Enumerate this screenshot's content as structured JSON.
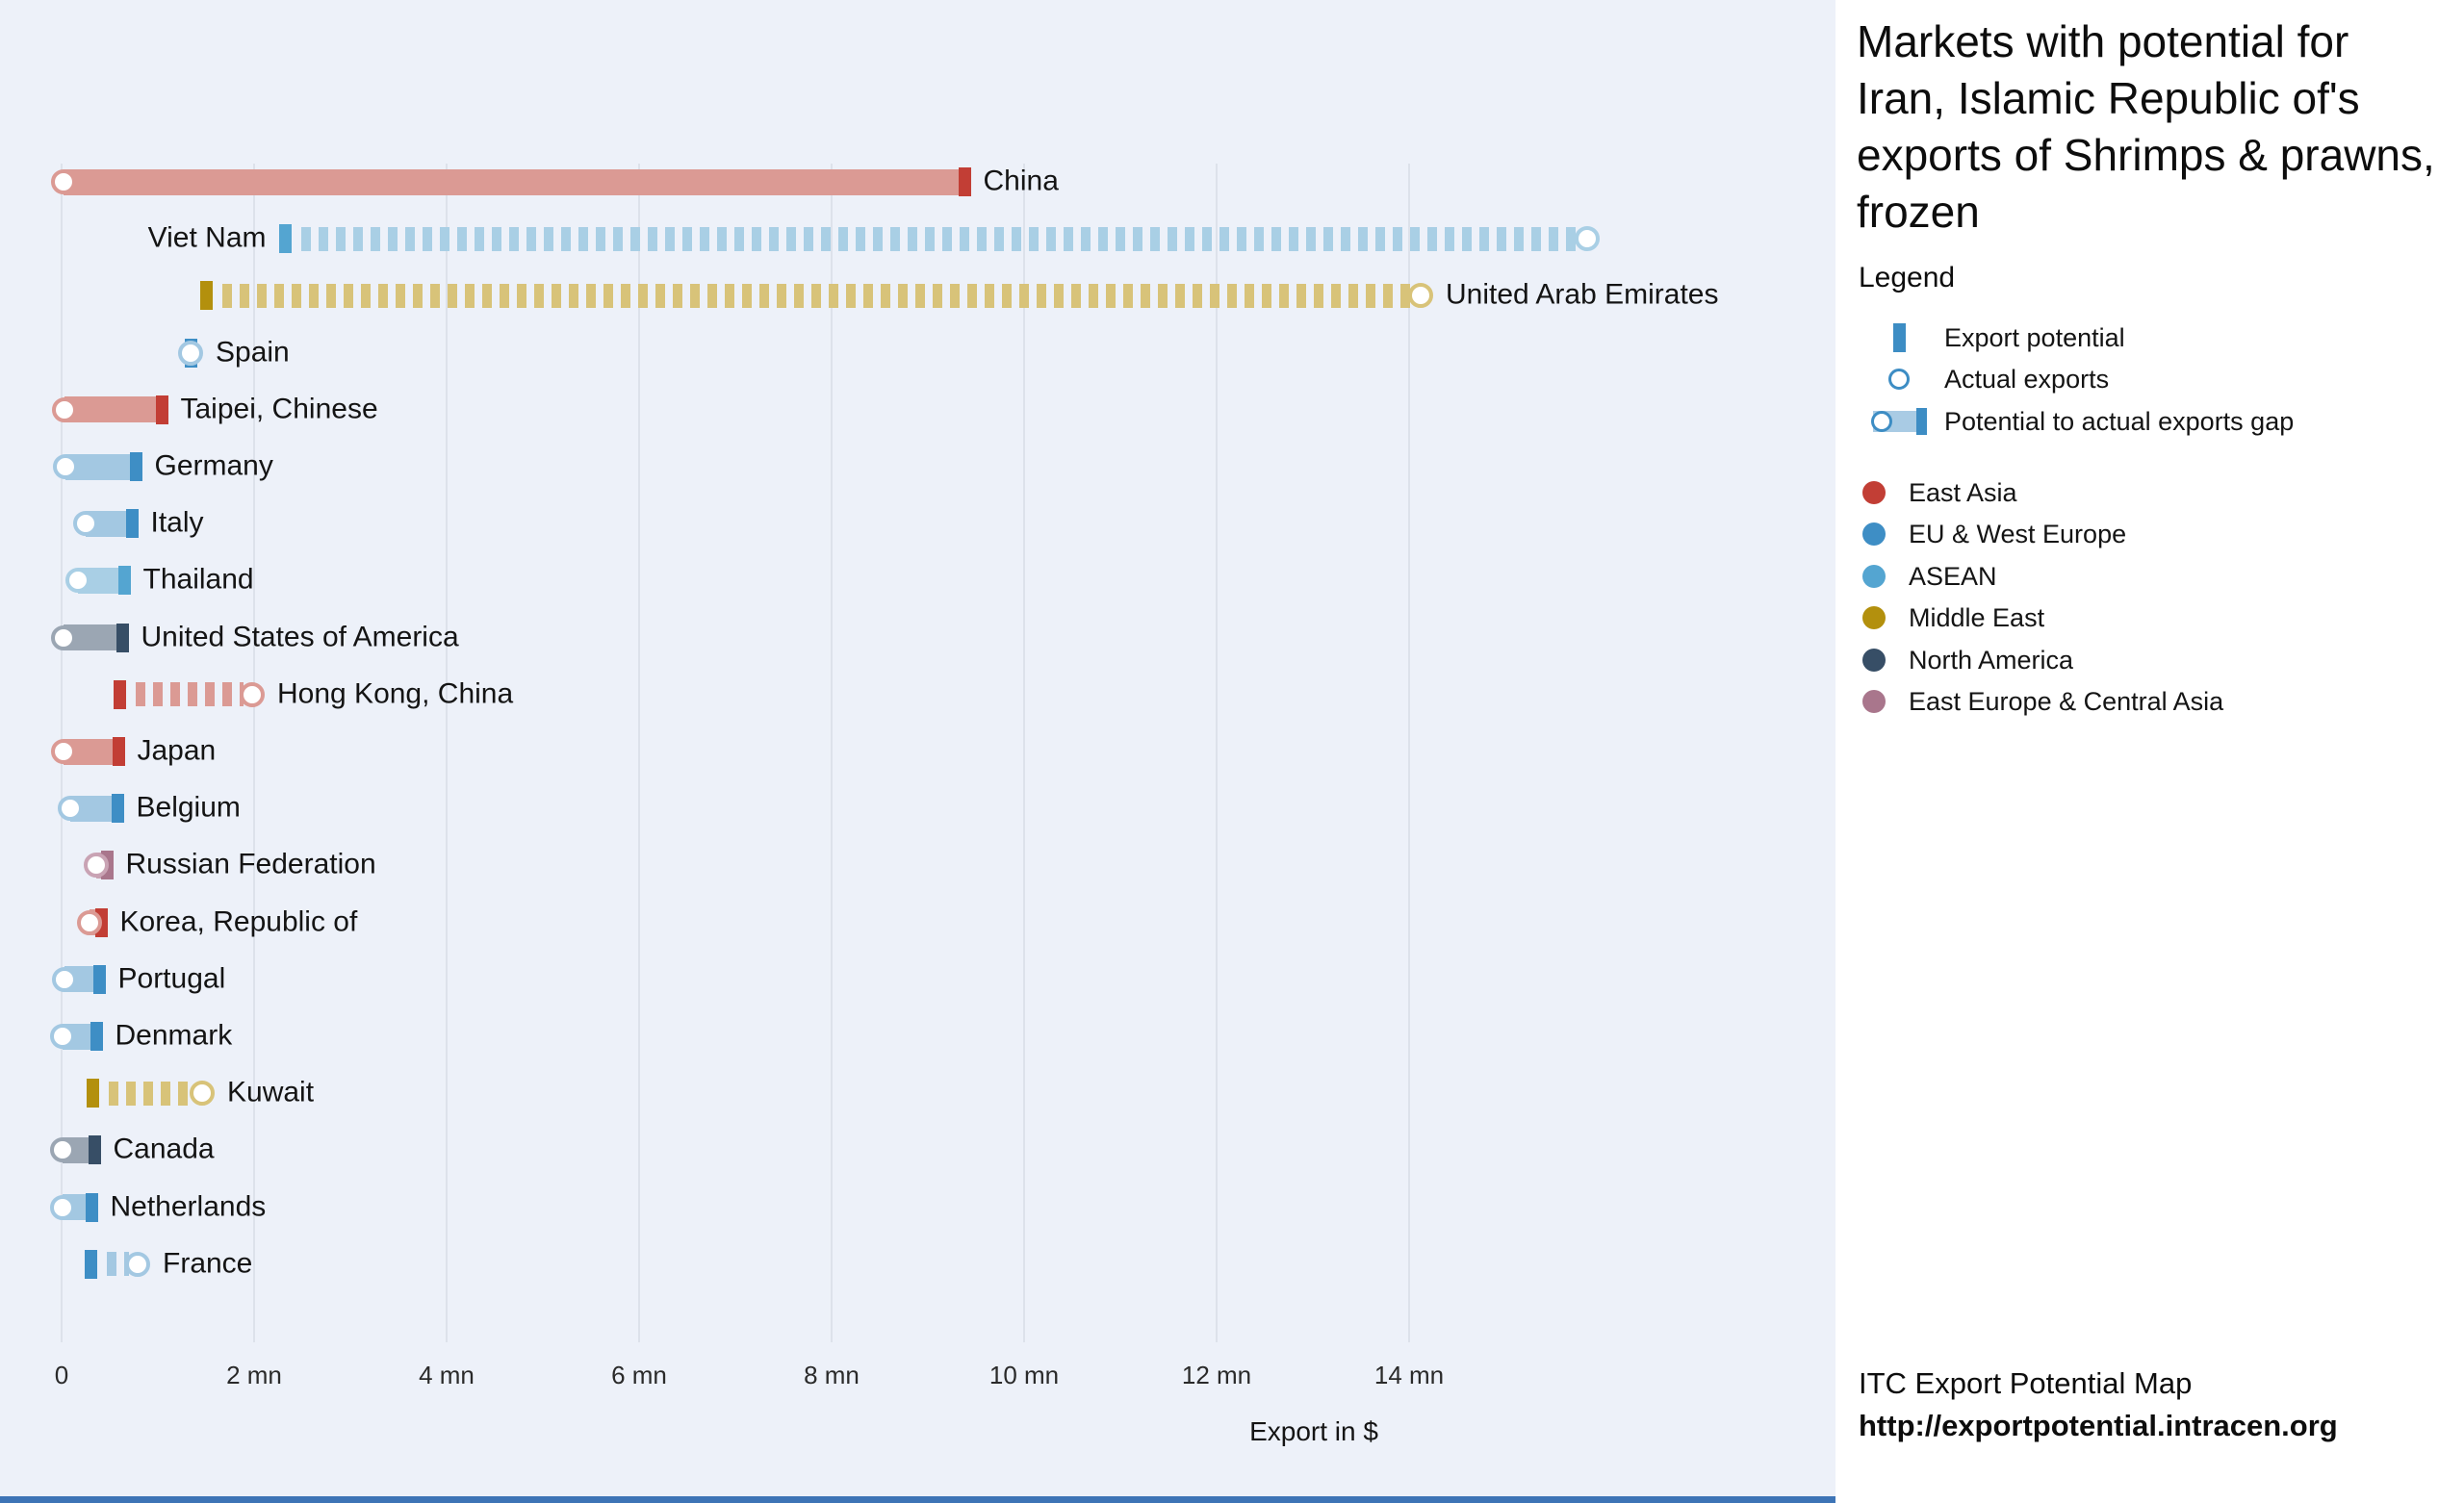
{
  "panel": {
    "title": "Markets with potential for Iran, Islamic Republic of's exports of Shrimps & prawns, frozen",
    "legend_title": "Legend",
    "legend_items": [
      {
        "id": "export-potential",
        "label": "Export potential"
      },
      {
        "id": "actual-exports",
        "label": "Actual exports"
      },
      {
        "id": "potential-gap",
        "label": "Potential to actual exports gap"
      }
    ],
    "legend_accent_solid": "#3d8dc4",
    "legend_accent_light": "#a9cbe4",
    "footer_line1": "ITC Export Potential Map",
    "footer_line2": "http://exportpotential.intracen.org"
  },
  "colors": {
    "chart_bg": "#edf1f9",
    "panel_bg": "#ffffff",
    "gridline": "#dde2eb",
    "bottom_strip": "#3d74b6",
    "text": "#141414"
  },
  "chart_data": {
    "type": "bar",
    "orientation": "horizontal",
    "title": "Markets with potential for Iran, Islamic Republic of's exports of Shrimps & prawns, frozen",
    "xlabel": "Export in $",
    "x_unit": "mn USD",
    "xlim": [
      0,
      16.3
    ],
    "grid": "vertical",
    "x_ticks": [
      {
        "value": 0,
        "label": "0"
      },
      {
        "value": 2,
        "label": "2 mn"
      },
      {
        "value": 4,
        "label": "4 mn"
      },
      {
        "value": 6,
        "label": "6 mn"
      },
      {
        "value": 8,
        "label": "8 mn"
      },
      {
        "value": 10,
        "label": "10 mn"
      },
      {
        "value": 12,
        "label": "12 mn"
      },
      {
        "value": 14,
        "label": "14 mn"
      }
    ],
    "marker_legend": [
      "Export potential",
      "Actual exports",
      "Potential to actual exports gap"
    ],
    "regions": [
      {
        "id": "east_asia",
        "label": "East Asia",
        "solid": "#c23e35",
        "light": "#db9a94"
      },
      {
        "id": "eu_west_europe",
        "label": "EU & West Europe",
        "solid": "#3e8ec5",
        "light": "#a3c8e2"
      },
      {
        "id": "asean",
        "label": "ASEAN",
        "solid": "#54a5d1",
        "light": "#a9cfe5"
      },
      {
        "id": "middle_east",
        "label": "Middle East",
        "solid": "#b3900d",
        "light": "#d8c379"
      },
      {
        "id": "north_america",
        "label": "North America",
        "solid": "#374e66",
        "light": "#9ba6b3"
      },
      {
        "id": "east_europe_central_asia",
        "label": "East Europe & Central Asia",
        "solid": "#a9768c",
        "light": "#c9a3b4"
      }
    ],
    "markets": [
      {
        "name": "China",
        "region": "east_asia",
        "actual_exports_mn": 0.02,
        "export_potential_mn": 9.38,
        "gap_style": "solid",
        "label_side": "right"
      },
      {
        "name": "Viet Nam",
        "region": "asean",
        "actual_exports_mn": 15.85,
        "export_potential_mn": 2.32,
        "gap_style": "striped",
        "label_side": "left"
      },
      {
        "name": "United Arab Emirates",
        "region": "middle_east",
        "actual_exports_mn": 14.12,
        "export_potential_mn": 1.5,
        "gap_style": "striped",
        "label_side": "right"
      },
      {
        "name": "Spain",
        "region": "eu_west_europe",
        "actual_exports_mn": 1.34,
        "export_potential_mn": 1.34,
        "gap_style": "none",
        "label_side": "right"
      },
      {
        "name": "Taipei, Chinese",
        "region": "east_asia",
        "actual_exports_mn": 0.03,
        "export_potential_mn": 1.04,
        "gap_style": "solid",
        "label_side": "right"
      },
      {
        "name": "Germany",
        "region": "eu_west_europe",
        "actual_exports_mn": 0.04,
        "export_potential_mn": 0.77,
        "gap_style": "solid",
        "label_side": "right"
      },
      {
        "name": "Italy",
        "region": "eu_west_europe",
        "actual_exports_mn": 0.25,
        "export_potential_mn": 0.73,
        "gap_style": "solid",
        "label_side": "right"
      },
      {
        "name": "Thailand",
        "region": "asean",
        "actual_exports_mn": 0.17,
        "export_potential_mn": 0.65,
        "gap_style": "solid",
        "label_side": "right"
      },
      {
        "name": "United States of America",
        "region": "north_america",
        "actual_exports_mn": 0.02,
        "export_potential_mn": 0.63,
        "gap_style": "solid",
        "label_side": "right"
      },
      {
        "name": "Hong Kong, China",
        "region": "east_asia",
        "actual_exports_mn": 1.98,
        "export_potential_mn": 0.6,
        "gap_style": "striped",
        "label_side": "right"
      },
      {
        "name": "Japan",
        "region": "east_asia",
        "actual_exports_mn": 0.02,
        "export_potential_mn": 0.59,
        "gap_style": "solid",
        "label_side": "right"
      },
      {
        "name": "Belgium",
        "region": "eu_west_europe",
        "actual_exports_mn": 0.09,
        "export_potential_mn": 0.58,
        "gap_style": "solid",
        "label_side": "right"
      },
      {
        "name": "Russian Federation",
        "region": "east_europe_central_asia",
        "actual_exports_mn": 0.36,
        "export_potential_mn": 0.47,
        "gap_style": "solid",
        "label_side": "right"
      },
      {
        "name": "Korea, Republic of",
        "region": "east_asia",
        "actual_exports_mn": 0.29,
        "export_potential_mn": 0.41,
        "gap_style": "solid",
        "label_side": "right"
      },
      {
        "name": "Portugal",
        "region": "eu_west_europe",
        "actual_exports_mn": 0.03,
        "export_potential_mn": 0.39,
        "gap_style": "solid",
        "label_side": "right"
      },
      {
        "name": "Denmark",
        "region": "eu_west_europe",
        "actual_exports_mn": 0.01,
        "export_potential_mn": 0.36,
        "gap_style": "solid",
        "label_side": "right"
      },
      {
        "name": "Kuwait",
        "region": "middle_east",
        "actual_exports_mn": 1.46,
        "export_potential_mn": 0.32,
        "gap_style": "striped",
        "label_side": "right"
      },
      {
        "name": "Canada",
        "region": "north_america",
        "actual_exports_mn": 0.01,
        "export_potential_mn": 0.34,
        "gap_style": "solid",
        "label_side": "right"
      },
      {
        "name": "Netherlands",
        "region": "eu_west_europe",
        "actual_exports_mn": 0.01,
        "export_potential_mn": 0.31,
        "gap_style": "solid",
        "label_side": "right"
      },
      {
        "name": "France",
        "region": "eu_west_europe",
        "actual_exports_mn": 0.79,
        "export_potential_mn": 0.3,
        "gap_style": "striped",
        "label_side": "right"
      }
    ]
  }
}
